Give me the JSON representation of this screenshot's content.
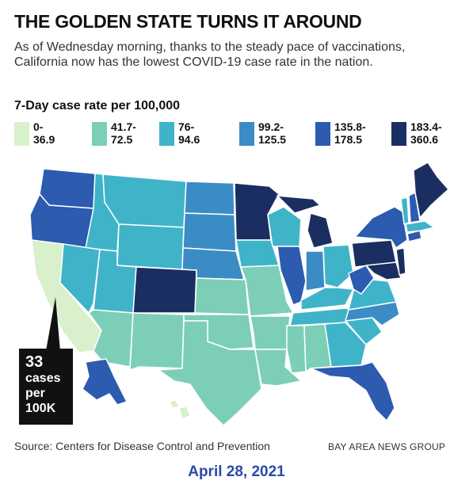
{
  "title": "THE GOLDEN STATE TURNS IT AROUND",
  "subtitle": "As of Wednesday morning, thanks to the steady pace of vaccinations, California now has the lowest COVID-19 case rate in the nation.",
  "legend": {
    "title": "7-Day case rate per 100,000",
    "bins": [
      {
        "line1": "0-",
        "line2": "36.9",
        "color": "#d8f0cc"
      },
      {
        "line1": "41.7-",
        "line2": "72.5",
        "color": "#7ccfb6"
      },
      {
        "line1": "76-",
        "line2": "94.6",
        "color": "#3fb4c9"
      },
      {
        "line1": "99.2-",
        "line2": "125.5",
        "color": "#3b8cc4"
      },
      {
        "line1": "135.8-",
        "line2": "178.5",
        "color": "#2c5bb0"
      },
      {
        "line1": "183.4-",
        "line2": "360.6",
        "color": "#1b2e62"
      }
    ]
  },
  "callout": {
    "line1": "33",
    "line2": "cases",
    "line3": "per",
    "line4": "100K"
  },
  "source": "Source: Centers for Disease Control and Prevention",
  "credit": "BAY AREA NEWS GROUP",
  "date": "April 28, 2021",
  "map_colors": {
    "land_default": "#7ccfb6",
    "border": "#ffffff",
    "background": "#ffffff"
  }
}
